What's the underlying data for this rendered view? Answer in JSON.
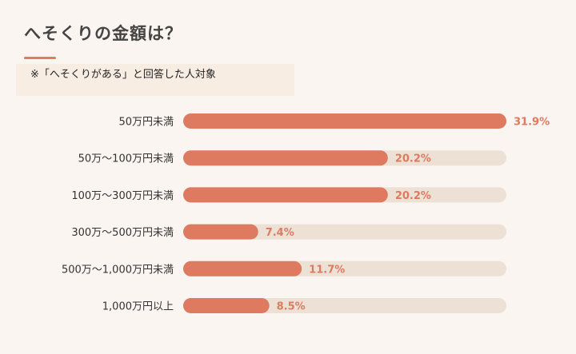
{
  "header": {
    "title": "へそくりの金額は？",
    "note": "※「へそくりがある」と回答した人対象"
  },
  "colors": {
    "bar": "#dd7a60",
    "track": "#ede1d6",
    "background": "#faf5f0",
    "accent": "#dd7a60"
  },
  "chart_data": {
    "type": "bar",
    "orientation": "horizontal",
    "categories": [
      "50万円未満",
      "50万～100万円未満",
      "100万～300万円未満",
      "300万～500万円未満",
      "500万～1,000万円未満",
      "1,000万円以上"
    ],
    "values": [
      31.9,
      20.2,
      20.2,
      7.4,
      11.7,
      8.5
    ],
    "value_labels": [
      "31.9%",
      "20.2%",
      "20.2%",
      "7.4%",
      "11.7%",
      "8.5%"
    ],
    "xlim": [
      0,
      31.9
    ],
    "unit": "%",
    "grid": false,
    "legend": "none"
  }
}
